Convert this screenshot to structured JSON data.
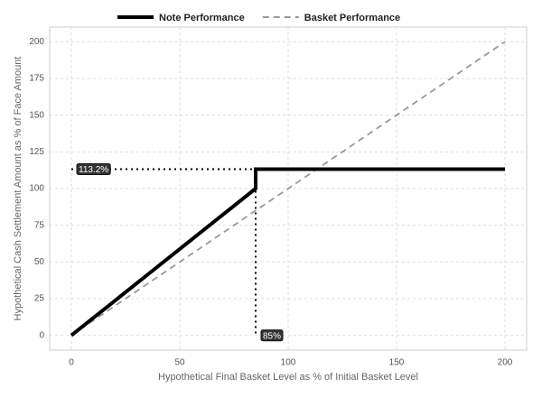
{
  "chart_data": {
    "type": "line",
    "xlabel": "Hypothetical Final Basket Level as % of Initial Basket Level",
    "ylabel": "Hypothetical Cash Settlement Amount as % of Face Amount",
    "series": [
      {
        "name": "Note Performance",
        "color": "#000000",
        "style": "solid",
        "x": [
          0,
          85,
          85,
          200
        ],
        "values": [
          0,
          100,
          113.2,
          113.2
        ]
      },
      {
        "name": "Basket Performance",
        "color": "#999999",
        "style": "dashed",
        "x": [
          0,
          200
        ],
        "values": [
          0,
          200
        ]
      }
    ],
    "annotations": [
      {
        "text": "113.2%",
        "x": 0,
        "y": 113.2
      },
      {
        "text": "85%",
        "x": 85,
        "y": 0
      }
    ],
    "xlim": [
      -10,
      210
    ],
    "xticks": [
      0,
      50,
      100,
      150,
      200
    ],
    "ylim": [
      -10,
      210
    ],
    "yticks": [
      0,
      25,
      50,
      75,
      100,
      125,
      150,
      175,
      200
    ],
    "grid": true,
    "legend": "top"
  }
}
